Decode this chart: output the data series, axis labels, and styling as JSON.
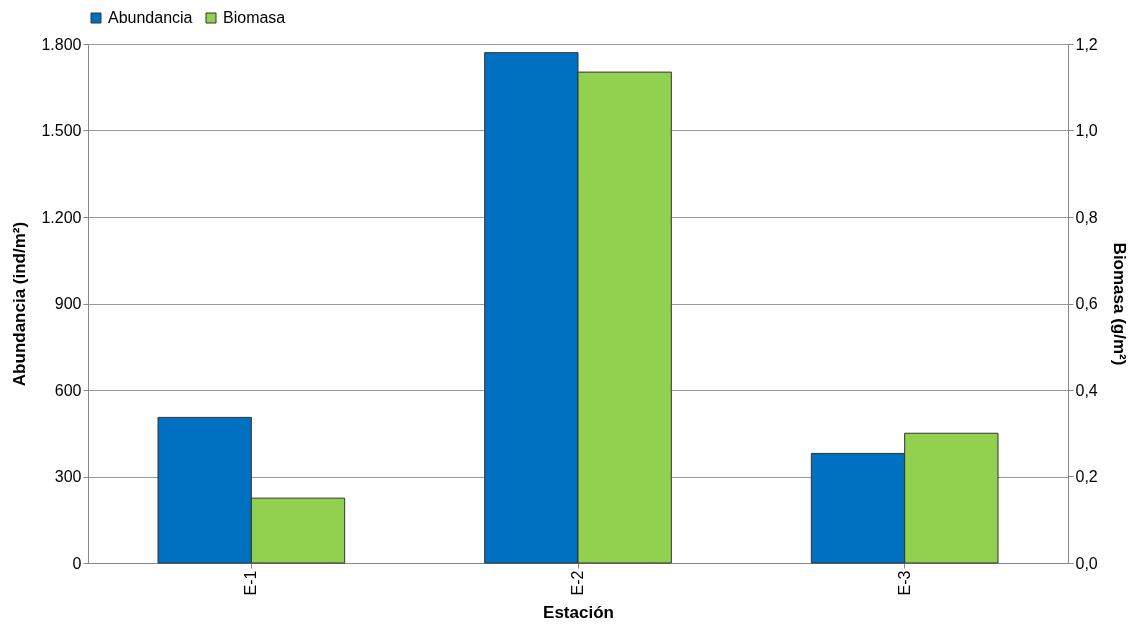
{
  "chart_data": {
    "type": "bar",
    "xlabel": "Estación",
    "ylabel": "Abundancia (ind/m²)",
    "y2label": "Biomasa (g/m²)",
    "categories": [
      "E-1",
      "E-2",
      "E-3"
    ],
    "series": [
      {
        "name": "Abundancia",
        "color": "#0070c0",
        "values": [
          505,
          1770,
          380
        ]
      },
      {
        "name": "Biomasa",
        "color": "#92d050",
        "values": [
          0.15,
          1.135,
          0.3
        ],
        "axis": "y2"
      }
    ],
    "ylim": [
      0,
      1800
    ],
    "yticks": [
      0,
      300,
      600,
      900,
      {
        "value": 1200,
        "label": "1.200"
      },
      {
        "value": 1500,
        "label": "1.500"
      },
      {
        "value": 1800,
        "label": "1.800"
      }
    ],
    "y2lim": [
      0,
      1.2
    ],
    "y2ticks": [
      {
        "value": 0,
        "label": "0,0"
      },
      {
        "value": 0.2,
        "label": "0,2"
      },
      {
        "value": 0.4,
        "label": "0,4"
      },
      {
        "value": 0.6,
        "label": "0,6"
      },
      {
        "value": 0.8,
        "label": "0,8"
      },
      {
        "value": 1.0,
        "label": "1,0"
      },
      {
        "value": 1.2,
        "label": "1,2"
      }
    ],
    "grid": "y",
    "legend": "top"
  }
}
